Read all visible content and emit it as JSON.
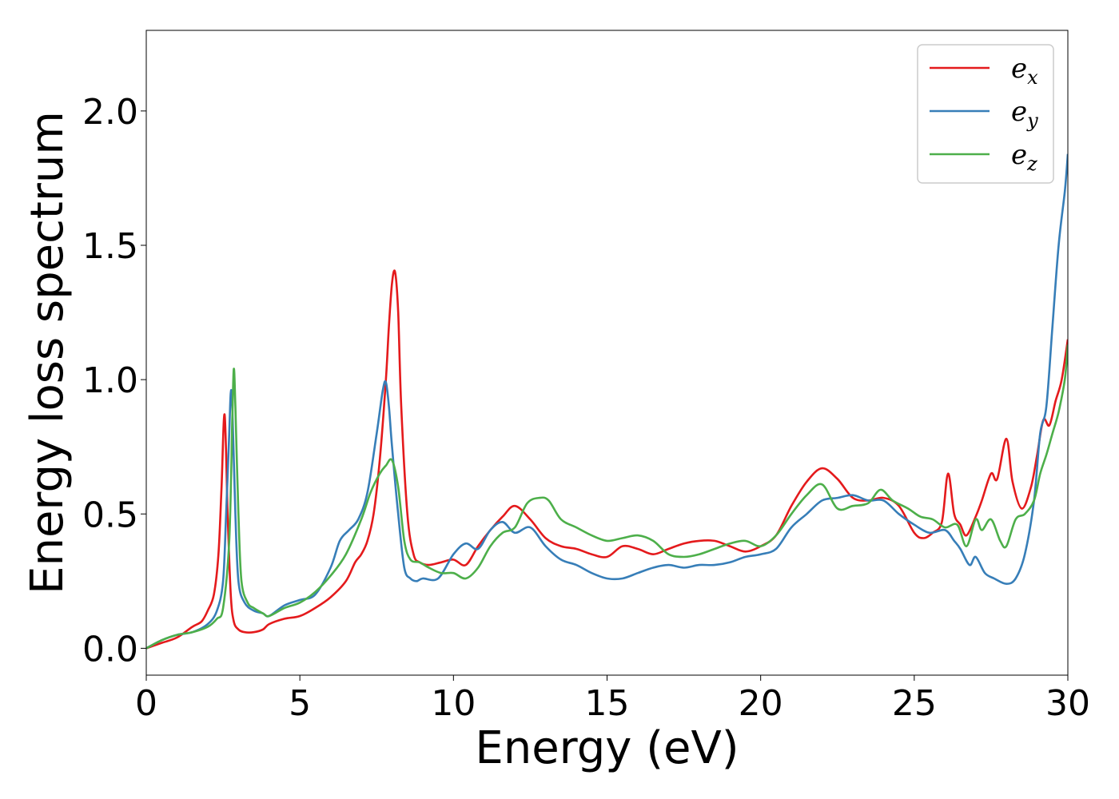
{
  "chart_data": {
    "type": "line",
    "title": "",
    "xlabel": "Energy (eV)",
    "ylabel": "Energy loss spectrum",
    "xlim": [
      0,
      30
    ],
    "ylim": [
      -0.1,
      2.3
    ],
    "xticks": [
      0,
      5,
      10,
      15,
      20,
      25,
      30
    ],
    "xtick_labels": [
      "0",
      "5",
      "10",
      "15",
      "20",
      "25",
      "30"
    ],
    "yticks": [
      0.0,
      0.5,
      1.0,
      1.5,
      2.0
    ],
    "ytick_labels": [
      "0.0",
      "0.5",
      "1.0",
      "1.5",
      "2.0"
    ],
    "grid": false,
    "legend_position": "top-right",
    "series": [
      {
        "name": "e_x",
        "legend_base": "e",
        "legend_sub": "x",
        "color": "#e41a1c",
        "x": [
          0,
          0.5,
          1.0,
          1.5,
          1.8,
          2.0,
          2.2,
          2.35,
          2.45,
          2.55,
          2.65,
          2.75,
          2.85,
          3.0,
          3.2,
          3.5,
          3.8,
          4.0,
          4.5,
          5.0,
          5.5,
          6.0,
          6.5,
          6.8,
          7.0,
          7.2,
          7.4,
          7.6,
          7.8,
          7.9,
          8.0,
          8.1,
          8.2,
          8.3,
          8.5,
          8.7,
          8.9,
          9.2,
          9.6,
          10.0,
          10.4,
          10.8,
          11.2,
          11.6,
          12.0,
          12.5,
          13.0,
          13.5,
          14.0,
          14.5,
          15.0,
          15.5,
          16.0,
          16.5,
          17.0,
          17.5,
          18.0,
          18.5,
          19.0,
          19.5,
          20.0,
          20.5,
          21.0,
          21.5,
          22.0,
          22.5,
          23.0,
          23.5,
          24.0,
          24.5,
          25.0,
          25.3,
          25.6,
          25.9,
          26.1,
          26.3,
          26.5,
          26.7,
          27.0,
          27.2,
          27.5,
          27.7,
          28.0,
          28.2,
          28.5,
          28.8,
          29.0,
          29.2,
          29.4,
          29.6,
          29.8,
          30.0
        ],
        "y": [
          0.0,
          0.02,
          0.04,
          0.08,
          0.1,
          0.14,
          0.2,
          0.35,
          0.6,
          0.87,
          0.5,
          0.2,
          0.1,
          0.07,
          0.06,
          0.06,
          0.07,
          0.09,
          0.11,
          0.12,
          0.15,
          0.19,
          0.25,
          0.32,
          0.35,
          0.4,
          0.5,
          0.7,
          1.0,
          1.2,
          1.36,
          1.4,
          1.25,
          0.9,
          0.5,
          0.35,
          0.32,
          0.31,
          0.32,
          0.33,
          0.31,
          0.38,
          0.44,
          0.49,
          0.53,
          0.48,
          0.41,
          0.38,
          0.37,
          0.35,
          0.34,
          0.38,
          0.37,
          0.35,
          0.37,
          0.39,
          0.4,
          0.4,
          0.38,
          0.36,
          0.38,
          0.42,
          0.53,
          0.62,
          0.67,
          0.63,
          0.56,
          0.55,
          0.56,
          0.53,
          0.43,
          0.41,
          0.43,
          0.47,
          0.65,
          0.5,
          0.46,
          0.42,
          0.49,
          0.55,
          0.65,
          0.63,
          0.78,
          0.62,
          0.52,
          0.6,
          0.72,
          0.85,
          0.83,
          0.92,
          1.0,
          1.15
        ]
      },
      {
        "name": "e_y",
        "legend_base": "e",
        "legend_sub": "y",
        "color": "#377eb8",
        "x": [
          0,
          0.5,
          1.0,
          1.5,
          2.0,
          2.3,
          2.5,
          2.6,
          2.7,
          2.75,
          2.8,
          2.9,
          3.0,
          3.2,
          3.5,
          3.8,
          4.0,
          4.5,
          5.0,
          5.5,
          6.0,
          6.3,
          6.6,
          6.9,
          7.2,
          7.5,
          7.7,
          7.8,
          7.9,
          8.0,
          8.2,
          8.4,
          8.6,
          8.8,
          9.0,
          9.5,
          10.0,
          10.4,
          10.8,
          11.2,
          11.6,
          12.0,
          12.5,
          13.0,
          13.5,
          14.0,
          14.5,
          15.0,
          15.5,
          16.0,
          16.5,
          17.0,
          17.5,
          18.0,
          18.5,
          19.0,
          19.5,
          20.0,
          20.5,
          21.0,
          21.5,
          22.0,
          22.5,
          23.0,
          23.5,
          24.0,
          24.5,
          25.0,
          25.5,
          26.0,
          26.3,
          26.5,
          26.8,
          27.0,
          27.3,
          27.6,
          28.0,
          28.3,
          28.6,
          28.9,
          29.1,
          29.3,
          29.5,
          29.7,
          29.9,
          30.0
        ],
        "y": [
          0.0,
          0.03,
          0.05,
          0.06,
          0.09,
          0.14,
          0.25,
          0.5,
          0.8,
          0.95,
          0.9,
          0.5,
          0.25,
          0.17,
          0.14,
          0.13,
          0.12,
          0.16,
          0.18,
          0.2,
          0.3,
          0.4,
          0.44,
          0.48,
          0.58,
          0.8,
          0.96,
          0.99,
          0.9,
          0.75,
          0.5,
          0.3,
          0.26,
          0.25,
          0.26,
          0.26,
          0.35,
          0.39,
          0.37,
          0.44,
          0.47,
          0.43,
          0.45,
          0.38,
          0.33,
          0.31,
          0.28,
          0.26,
          0.26,
          0.28,
          0.3,
          0.31,
          0.3,
          0.31,
          0.31,
          0.32,
          0.34,
          0.35,
          0.37,
          0.45,
          0.5,
          0.55,
          0.56,
          0.57,
          0.55,
          0.55,
          0.5,
          0.46,
          0.43,
          0.44,
          0.4,
          0.37,
          0.31,
          0.34,
          0.28,
          0.26,
          0.24,
          0.26,
          0.35,
          0.55,
          0.8,
          0.9,
          1.2,
          1.5,
          1.7,
          1.84
        ]
      },
      {
        "name": "e_z",
        "legend_base": "e",
        "legend_sub": "z",
        "color": "#4daf4a",
        "x": [
          0,
          0.5,
          1.0,
          1.5,
          2.0,
          2.3,
          2.5,
          2.7,
          2.8,
          2.85,
          2.9,
          3.0,
          3.1,
          3.3,
          3.5,
          3.8,
          4.0,
          4.5,
          5.0,
          5.5,
          6.0,
          6.5,
          7.0,
          7.3,
          7.6,
          7.8,
          8.0,
          8.2,
          8.4,
          8.6,
          8.9,
          9.2,
          9.6,
          10.0,
          10.4,
          10.8,
          11.2,
          11.6,
          12.0,
          12.4,
          12.8,
          13.1,
          13.5,
          14.0,
          14.5,
          15.0,
          15.5,
          16.0,
          16.5,
          17.0,
          17.5,
          18.0,
          18.5,
          19.0,
          19.5,
          20.0,
          20.5,
          21.0,
          21.5,
          22.0,
          22.5,
          23.0,
          23.5,
          23.9,
          24.3,
          24.8,
          25.2,
          25.6,
          26.0,
          26.4,
          26.7,
          27.0,
          27.2,
          27.5,
          27.8,
          28.0,
          28.3,
          28.6,
          28.9,
          29.1,
          29.3,
          29.5,
          29.7,
          29.9,
          30.0
        ],
        "y": [
          0.0,
          0.03,
          0.05,
          0.06,
          0.08,
          0.11,
          0.15,
          0.4,
          0.85,
          1.04,
          0.9,
          0.5,
          0.25,
          0.17,
          0.15,
          0.13,
          0.12,
          0.15,
          0.17,
          0.21,
          0.27,
          0.35,
          0.48,
          0.58,
          0.65,
          0.68,
          0.7,
          0.6,
          0.4,
          0.33,
          0.32,
          0.3,
          0.28,
          0.28,
          0.26,
          0.3,
          0.38,
          0.43,
          0.45,
          0.54,
          0.56,
          0.55,
          0.48,
          0.45,
          0.42,
          0.4,
          0.41,
          0.42,
          0.4,
          0.35,
          0.34,
          0.35,
          0.37,
          0.39,
          0.4,
          0.38,
          0.42,
          0.5,
          0.57,
          0.61,
          0.52,
          0.53,
          0.54,
          0.59,
          0.55,
          0.52,
          0.49,
          0.48,
          0.45,
          0.46,
          0.38,
          0.48,
          0.44,
          0.48,
          0.4,
          0.38,
          0.48,
          0.5,
          0.55,
          0.65,
          0.72,
          0.8,
          0.88,
          1.0,
          1.13
        ]
      }
    ]
  }
}
